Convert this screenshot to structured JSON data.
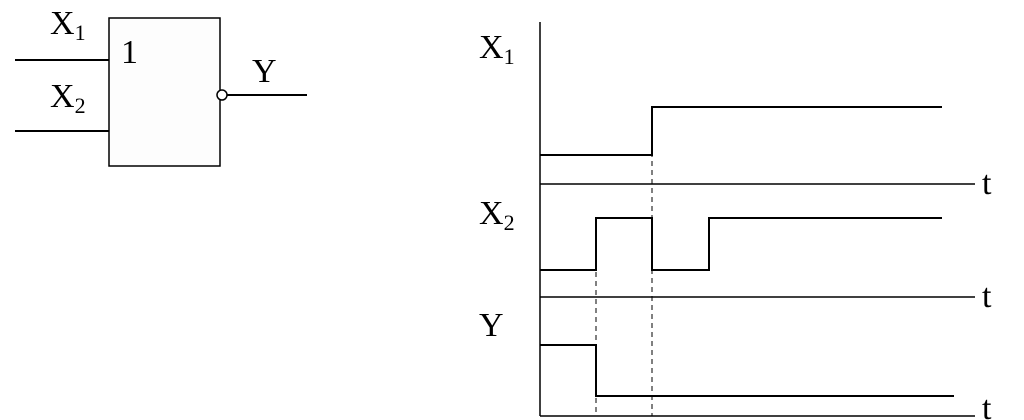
{
  "gate": {
    "inputs": [
      {
        "name": "X",
        "sub": "1"
      },
      {
        "name": "X",
        "sub": "2"
      }
    ],
    "symbol": "1",
    "output": "Y"
  },
  "timing": {
    "signals": [
      {
        "name": "X",
        "sub": "1"
      },
      {
        "name": "X",
        "sub": "2"
      },
      {
        "name": "Y"
      }
    ],
    "axis_label": "t"
  }
}
